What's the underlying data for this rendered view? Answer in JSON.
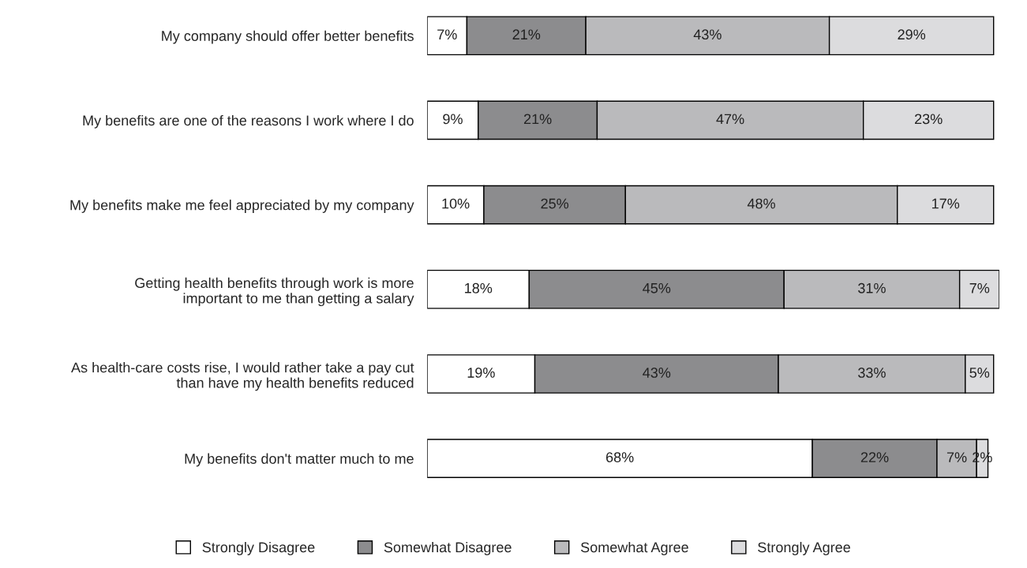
{
  "chart_data": {
    "type": "bar",
    "orientation": "horizontal",
    "stacked": true,
    "legend": "bottom",
    "grid": false,
    "categories": [
      "My company should offer better benefits",
      "My benefits are one of the reasons I work where I do",
      "My benefits make me feel appreciated by my company",
      "Getting health benefits through work is more\nimportant to me than getting a salary",
      "As health-care costs rise, I would rather take a pay cut\nthan have my health benefits reduced",
      "My benefits don't matter much to me"
    ],
    "series": [
      {
        "name": "Strongly Disagree",
        "color": "#ffffff",
        "values": [
          7,
          9,
          10,
          18,
          19,
          68
        ],
        "value_labels": [
          "7%",
          "9%",
          "10%",
          "18%",
          "19%",
          "68%"
        ]
      },
      {
        "name": "Somewhat Disagree",
        "color": "#8c8c8e",
        "values": [
          21,
          21,
          25,
          45,
          43,
          22
        ],
        "value_labels": [
          "21%",
          "21%",
          "25%",
          "45%",
          "43%",
          "22%"
        ]
      },
      {
        "name": "Somewhat Agree",
        "color": "#bababc",
        "values": [
          43,
          47,
          48,
          31,
          33,
          7
        ],
        "value_labels": [
          "43%",
          "47%",
          "48%",
          "31%",
          "33%",
          "7%"
        ]
      },
      {
        "name": "Strongly Agree",
        "color": "#dcdcde",
        "values": [
          29,
          23,
          17,
          7,
          5,
          2
        ],
        "value_labels": [
          "29%",
          "23%",
          "17%",
          "7%",
          "5%",
          "2%"
        ]
      }
    ]
  }
}
